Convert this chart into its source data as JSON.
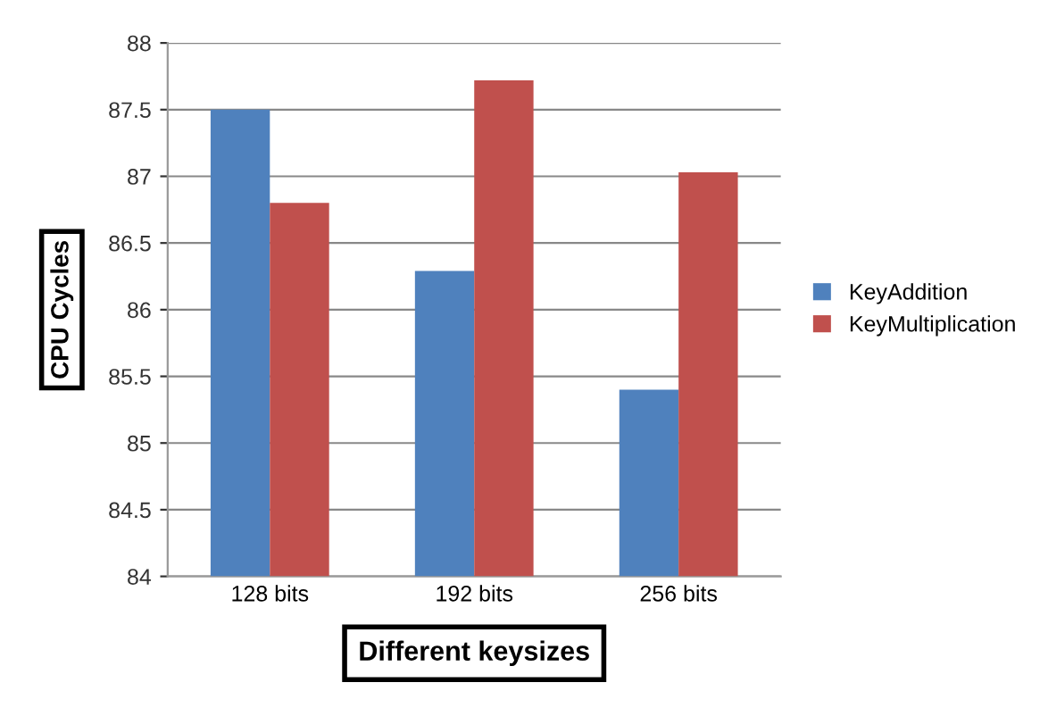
{
  "chart_data": {
    "type": "bar",
    "xlabel": "Different keysizes",
    "ylabel": "CPU Cycles",
    "categories": [
      "128 bits",
      "192 bits",
      "256 bits"
    ],
    "series": [
      {
        "name": "KeyAddition",
        "color": "#4f81bd",
        "values": [
          87.5,
          86.29,
          85.4
        ]
      },
      {
        "name": "KeyMultiplication",
        "color": "#c0504d",
        "values": [
          86.8,
          87.72,
          87.03
        ]
      }
    ],
    "ylim": [
      84,
      88
    ],
    "yticks": [
      84,
      84.5,
      85,
      85.5,
      86,
      86.5,
      87,
      87.5,
      88
    ],
    "grid": "y",
    "legend": "right"
  }
}
